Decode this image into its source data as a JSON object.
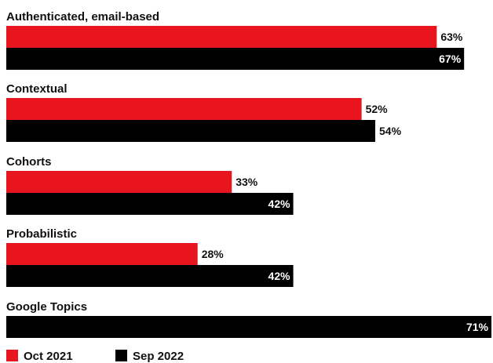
{
  "chart_data": {
    "type": "bar",
    "orientation": "horizontal",
    "title": "",
    "xlabel": "",
    "ylabel": "",
    "value_suffix": "%",
    "xlim": [
      0,
      71
    ],
    "grid": false,
    "legend_position": "bottom-left",
    "categories": [
      "Authenticated, email-based",
      "Contextual",
      "Cohorts",
      "Probabilistic",
      "Google Topics"
    ],
    "series": [
      {
        "name": "Oct 2021",
        "color": "#e8141e",
        "values": [
          63,
          52,
          33,
          28,
          null
        ]
      },
      {
        "name": "Sep 2022",
        "color": "#000000",
        "values": [
          67,
          54,
          42,
          42,
          71
        ]
      }
    ]
  }
}
